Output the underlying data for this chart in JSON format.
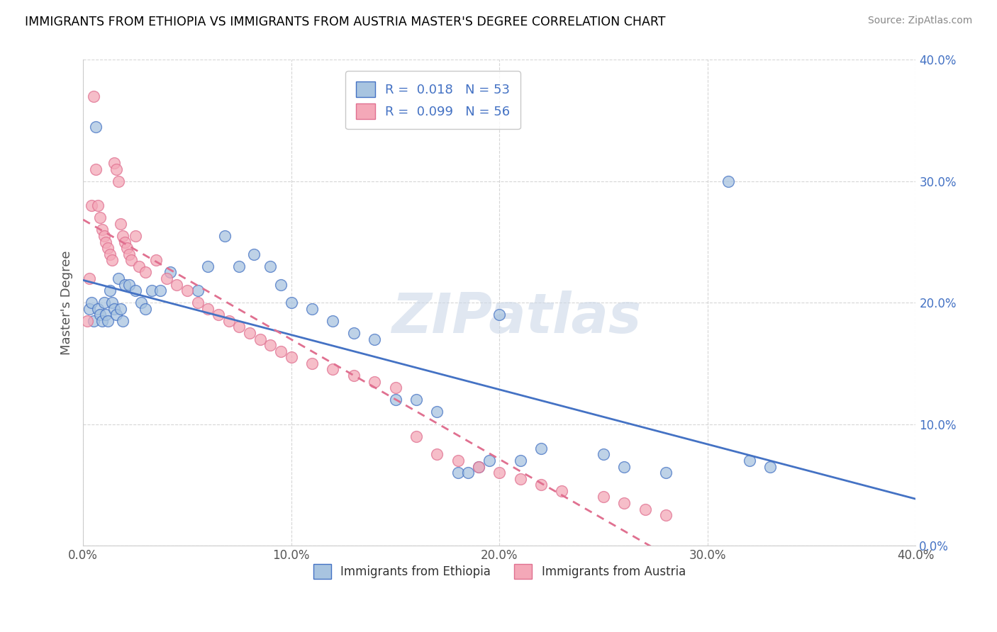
{
  "title": "IMMIGRANTS FROM ETHIOPIA VS IMMIGRANTS FROM AUSTRIA MASTER'S DEGREE CORRELATION CHART",
  "source": "Source: ZipAtlas.com",
  "ylabel": "Master's Degree",
  "watermark": "ZIPatlas",
  "xlim": [
    0.0,
    0.4
  ],
  "ylim": [
    0.0,
    0.4
  ],
  "r_ethiopia": 0.018,
  "n_ethiopia": 53,
  "r_austria": 0.099,
  "n_austria": 56,
  "legend_ethiopia": "Immigrants from Ethiopia",
  "legend_austria": "Immigrants from Austria",
  "color_ethiopia": "#a8c4e0",
  "color_austria": "#f4a8b8",
  "trendline_ethiopia_color": "#4472c4",
  "trendline_austria_color": "#e07090",
  "ytick_color": "#4472c4",
  "ethiopia_x": [
    0.003,
    0.004,
    0.005,
    0.006,
    0.007,
    0.008,
    0.009,
    0.01,
    0.011,
    0.012,
    0.013,
    0.014,
    0.015,
    0.016,
    0.017,
    0.018,
    0.019,
    0.02,
    0.022,
    0.025,
    0.028,
    0.03,
    0.033,
    0.037,
    0.042,
    0.055,
    0.06,
    0.068,
    0.075,
    0.082,
    0.09,
    0.095,
    0.1,
    0.11,
    0.12,
    0.13,
    0.14,
    0.15,
    0.16,
    0.17,
    0.18,
    0.185,
    0.19,
    0.195,
    0.2,
    0.21,
    0.22,
    0.25,
    0.26,
    0.28,
    0.31,
    0.32,
    0.33
  ],
  "ethiopia_y": [
    0.195,
    0.2,
    0.185,
    0.345,
    0.195,
    0.19,
    0.185,
    0.2,
    0.19,
    0.185,
    0.21,
    0.2,
    0.195,
    0.19,
    0.22,
    0.195,
    0.185,
    0.215,
    0.215,
    0.21,
    0.2,
    0.195,
    0.21,
    0.21,
    0.225,
    0.21,
    0.23,
    0.255,
    0.23,
    0.24,
    0.23,
    0.215,
    0.2,
    0.195,
    0.185,
    0.175,
    0.17,
    0.12,
    0.12,
    0.11,
    0.06,
    0.06,
    0.065,
    0.07,
    0.19,
    0.07,
    0.08,
    0.075,
    0.065,
    0.06,
    0.3,
    0.07,
    0.065
  ],
  "austria_x": [
    0.002,
    0.003,
    0.004,
    0.005,
    0.006,
    0.007,
    0.008,
    0.009,
    0.01,
    0.011,
    0.012,
    0.013,
    0.014,
    0.015,
    0.016,
    0.017,
    0.018,
    0.019,
    0.02,
    0.021,
    0.022,
    0.023,
    0.025,
    0.027,
    0.03,
    0.035,
    0.04,
    0.045,
    0.05,
    0.055,
    0.06,
    0.065,
    0.07,
    0.075,
    0.08,
    0.085,
    0.09,
    0.095,
    0.1,
    0.11,
    0.12,
    0.13,
    0.14,
    0.15,
    0.16,
    0.17,
    0.18,
    0.19,
    0.2,
    0.21,
    0.22,
    0.23,
    0.25,
    0.26,
    0.27,
    0.28
  ],
  "austria_y": [
    0.185,
    0.22,
    0.28,
    0.37,
    0.31,
    0.28,
    0.27,
    0.26,
    0.255,
    0.25,
    0.245,
    0.24,
    0.235,
    0.315,
    0.31,
    0.3,
    0.265,
    0.255,
    0.25,
    0.245,
    0.24,
    0.235,
    0.255,
    0.23,
    0.225,
    0.235,
    0.22,
    0.215,
    0.21,
    0.2,
    0.195,
    0.19,
    0.185,
    0.18,
    0.175,
    0.17,
    0.165,
    0.16,
    0.155,
    0.15,
    0.145,
    0.14,
    0.135,
    0.13,
    0.09,
    0.075,
    0.07,
    0.065,
    0.06,
    0.055,
    0.05,
    0.045,
    0.04,
    0.035,
    0.03,
    0.025
  ]
}
